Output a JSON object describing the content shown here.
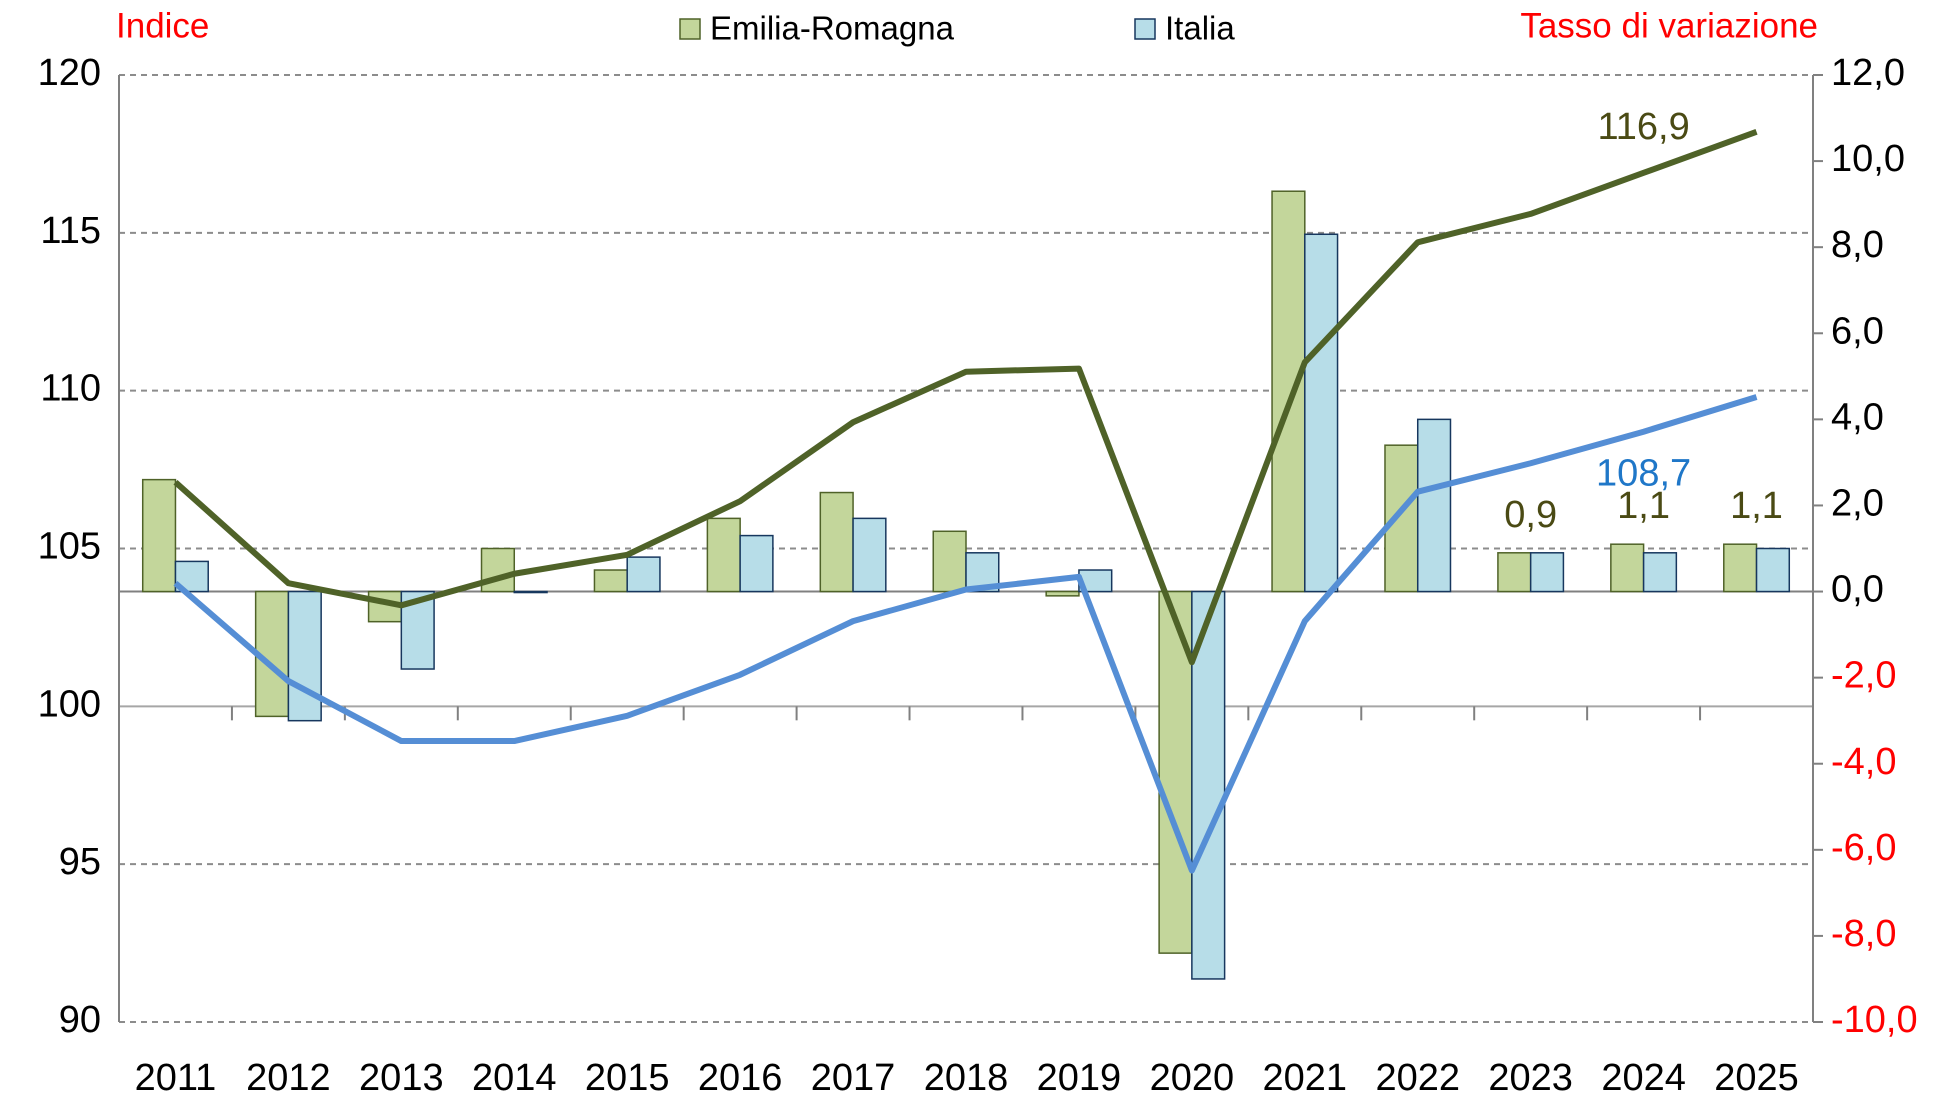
{
  "chart_data": {
    "type": "bar_line",
    "y_title": "Indice",
    "y2_title": "Tasso di variazione",
    "title_color": "#ff0000",
    "y2_negative_color": "#ff0000",
    "categories": [
      "2011",
      "2012",
      "2013",
      "2014",
      "2015",
      "2016",
      "2017",
      "2018",
      "2019",
      "2020",
      "2021",
      "2022",
      "2023",
      "2024",
      "2025"
    ],
    "ylim": [
      90,
      120
    ],
    "yticks": [
      90,
      95,
      100,
      105,
      110,
      115,
      120
    ],
    "y2lim": [
      -10,
      12
    ],
    "y2ticks": [
      {
        "value": -10,
        "label": "-10,0"
      },
      {
        "value": -8,
        "label": "-8,0"
      },
      {
        "value": -6,
        "label": "-6,0"
      },
      {
        "value": -4,
        "label": "-4,0"
      },
      {
        "value": -2,
        "label": "-2,0"
      },
      {
        "value": 0,
        "label": "0,0"
      },
      {
        "value": 2,
        "label": "2,0"
      },
      {
        "value": 4,
        "label": "4,0"
      },
      {
        "value": 6,
        "label": "6,0"
      },
      {
        "value": 8,
        "label": "8,0"
      },
      {
        "value": 10,
        "label": "10,0"
      },
      {
        "value": 12,
        "label": "12,0"
      }
    ],
    "grid": true,
    "legend": "top",
    "series": [
      {
        "name": "Emilia-Romagna",
        "color": "#c3d69b",
        "border": "#4f6228",
        "axis": "y2",
        "values": [
          2.6,
          -2.9,
          -0.7,
          1.0,
          0.5,
          1.7,
          2.3,
          1.4,
          -0.1,
          -8.4,
          9.3,
          3.4,
          0.9,
          1.1,
          1.1
        ],
        "value_labels": [
          null,
          null,
          null,
          null,
          null,
          null,
          null,
          null,
          null,
          null,
          null,
          null,
          "0,9",
          "1,1",
          "1,1"
        ],
        "line_color": "#4f6228",
        "index_values": [
          107.1,
          103.9,
          103.2,
          104.2,
          104.8,
          106.5,
          109.0,
          110.6,
          110.7,
          101.4,
          110.9,
          114.7,
          115.6,
          116.9,
          118.2
        ],
        "index_labels": [
          null,
          null,
          null,
          null,
          null,
          null,
          null,
          null,
          null,
          null,
          null,
          null,
          null,
          "116,9",
          null
        ]
      },
      {
        "name": "Italia",
        "color": "#b7dde8",
        "border": "#17375e",
        "axis": "y2",
        "values": [
          0.7,
          -3.0,
          -1.8,
          0.0,
          0.8,
          1.3,
          1.7,
          0.9,
          0.5,
          -9.0,
          8.3,
          4.0,
          0.9,
          0.9,
          1.0
        ],
        "line_color": "#558ed5",
        "index_values": [
          103.9,
          100.8,
          98.9,
          98.9,
          99.7,
          101.0,
          102.7,
          103.7,
          104.1,
          94.8,
          102.7,
          106.8,
          107.7,
          108.7,
          109.8
        ],
        "index_labels": [
          null,
          null,
          null,
          null,
          null,
          null,
          null,
          null,
          null,
          null,
          null,
          null,
          null,
          "108,7",
          null
        ]
      }
    ]
  }
}
